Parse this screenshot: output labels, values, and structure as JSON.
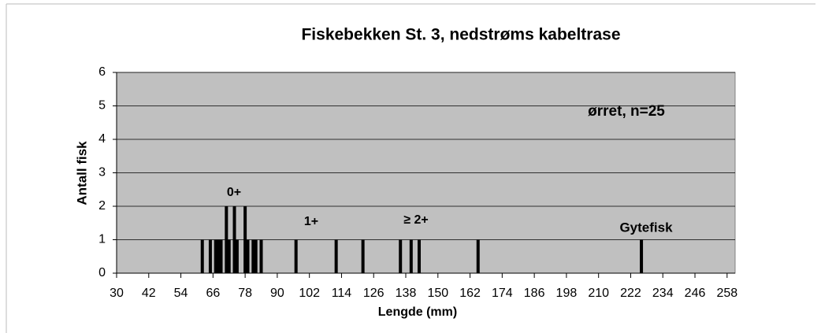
{
  "chart_data": {
    "type": "bar",
    "title": "Fiskebekken St. 3, nedstrøms kabeltrase",
    "xlabel": "Lengde (mm)",
    "ylabel": "Antall fisk",
    "annotations": [
      "0+",
      "1+",
      "≥ 2+",
      "Gytefisk",
      "ørret, n=25"
    ],
    "x": [
      62,
      65,
      67,
      68,
      69,
      71,
      72,
      74,
      75,
      78,
      79,
      81,
      82,
      84,
      97,
      112,
      122,
      136,
      140,
      143,
      165,
      226
    ],
    "values": [
      1,
      1,
      1,
      1,
      1,
      2,
      1,
      2,
      1,
      2,
      1,
      1,
      1,
      1,
      1,
      1,
      1,
      1,
      1,
      1,
      1,
      1
    ],
    "color": "#000000",
    "plot_background": "#c0c0c0",
    "xlim": [
      30,
      261
    ],
    "xticks": [
      30,
      42,
      54,
      66,
      78,
      90,
      102,
      114,
      126,
      138,
      150,
      162,
      174,
      186,
      198,
      210,
      222,
      234,
      246,
      258
    ],
    "ylim": [
      0,
      6
    ],
    "yticks": [
      0,
      1,
      2,
      3,
      4,
      5,
      6
    ],
    "grid": true
  }
}
